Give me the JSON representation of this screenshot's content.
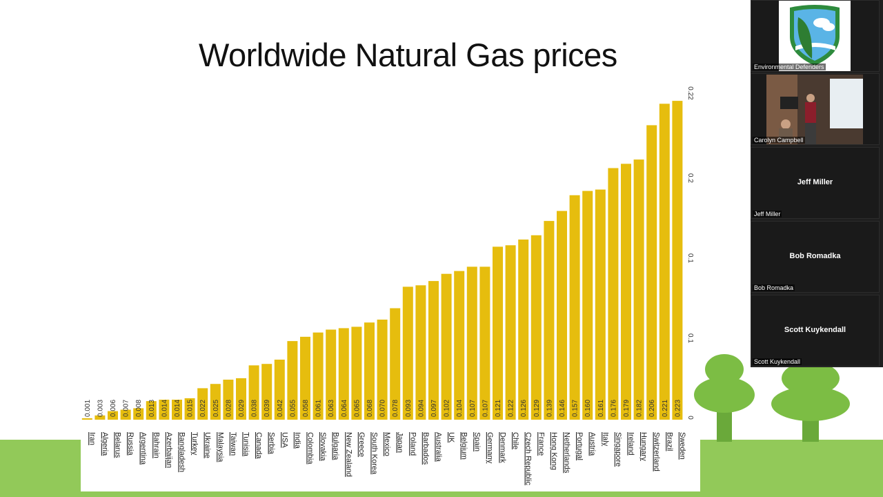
{
  "slide": {
    "title": "Worldwide Natural Gas prices"
  },
  "chart_data": {
    "type": "bar",
    "title": "Worldwide Natural Gas prices",
    "xlabel": "",
    "ylabel": "",
    "ylim": [
      0,
      0.225
    ],
    "y_tick_labels": [
      "0",
      "0.1",
      "0.1",
      "0.1",
      "0.2",
      "0.22"
    ],
    "bar_color": "#e6bd0e",
    "categories": [
      "Iran",
      "Algeria",
      "Belarus",
      "Russia",
      "Argentina",
      "Bahrain",
      "Azerbaijan",
      "Bangladesh",
      "Turkey",
      "Ukraine",
      "Malaysia",
      "Taiwan",
      "Tunisia",
      "Canada",
      "Serbia",
      "USA",
      "India",
      "Colombia",
      "Slovakia",
      "Bulgaria",
      "New Zealand",
      "Greece",
      "South Korea",
      "Mexico",
      "Japan",
      "Poland",
      "Barbados",
      "Australia",
      "UK",
      "Belgium",
      "Spain",
      "Germany",
      "Denmark",
      "Chile",
      "Czech Republic",
      "France",
      "Hong Kong",
      "Netherlands",
      "Portugal",
      "Austria",
      "Italy",
      "Singapore",
      "Ireland",
      "Hungary",
      "Switzerland",
      "Brazil",
      "Sweden"
    ],
    "values": [
      0.001,
      0.003,
      0.006,
      0.007,
      0.008,
      0.013,
      0.014,
      0.014,
      0.015,
      0.022,
      0.025,
      0.028,
      0.029,
      0.038,
      0.039,
      0.042,
      0.055,
      0.058,
      0.061,
      0.063,
      0.064,
      0.065,
      0.068,
      0.07,
      0.078,
      0.093,
      0.094,
      0.097,
      0.102,
      0.104,
      0.107,
      0.107,
      0.121,
      0.122,
      0.126,
      0.129,
      0.139,
      0.146,
      0.157,
      0.16,
      0.161,
      0.176,
      0.179,
      0.182,
      0.206,
      0.221,
      0.223
    ],
    "value_labels": [
      "0.001",
      "0.003",
      "0.006",
      "0.007",
      "0.008",
      "0.013",
      "0.014",
      "0.014",
      "0.015",
      "0.022",
      "0.025",
      "0.028",
      "0.029",
      "0.038",
      "0.039",
      "0.042",
      "0.055",
      "0.058",
      "0.061",
      "0.063",
      "0.064",
      "0.065",
      "0.068",
      "0.070",
      "0.078",
      "0.093",
      "0.094",
      "0.097",
      "0.102",
      "0.104",
      "0.107",
      "0.107",
      "0.121",
      "0.122",
      "0.126",
      "0.129",
      "0.139",
      "0.146",
      "0.157",
      "0.160",
      "0.161",
      "0.176",
      "0.179",
      "0.182",
      "0.206",
      "0.221",
      "0.223"
    ]
  },
  "participants": [
    {
      "name": "Environmental Defenders",
      "display": "",
      "video": "logo"
    },
    {
      "name": "Carolyn Campbell",
      "display": "",
      "video": "camera"
    },
    {
      "name": "Jeff Miller",
      "display": "Jeff Miller",
      "video": "none"
    },
    {
      "name": "Bob Romadka",
      "display": "Bob Romadka",
      "video": "none"
    },
    {
      "name": "Scott Kuykendall",
      "display": "Scott Kuykendall",
      "video": "none"
    }
  ]
}
